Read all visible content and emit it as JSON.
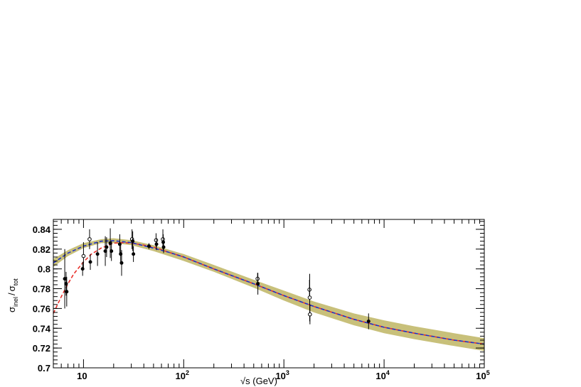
{
  "chart_data": {
    "type": "scatter",
    "title": "",
    "xlabel": "√s (GeV)",
    "ylabel": "σ_inel / σ_tot",
    "xlabel_parts": {
      "radicand": "s",
      "unit": " (GeV)"
    },
    "ylabel_parts": {
      "sigma": "σ",
      "sub1": "inel",
      "slash": "/",
      "sub2": "tot"
    },
    "x_scale": "log",
    "xlim": [
      5,
      100000
    ],
    "ylim": [
      0.7,
      0.85
    ],
    "grid": false,
    "legend": "none",
    "x_ticks": [
      {
        "value": 10,
        "label": "10",
        "exp": ""
      },
      {
        "value": 100,
        "label": "10",
        "exp": "2"
      },
      {
        "value": 1000,
        "label": "10",
        "exp": "3"
      },
      {
        "value": 10000,
        "label": "10",
        "exp": "4"
      },
      {
        "value": 100000,
        "label": "10",
        "exp": "5"
      }
    ],
    "y_ticks": [
      {
        "value": 0.7,
        "label": "0.7"
      },
      {
        "value": 0.72,
        "label": "0.72"
      },
      {
        "value": 0.74,
        "label": "0.74"
      },
      {
        "value": 0.76,
        "label": "0.76"
      },
      {
        "value": 0.78,
        "label": "0.78"
      },
      {
        "value": 0.8,
        "label": "0.8"
      },
      {
        "value": 0.82,
        "label": "0.82"
      },
      {
        "value": 0.84,
        "label": "0.84"
      }
    ],
    "band": {
      "color": "#c8c07a",
      "x": [
        5,
        7,
        10,
        15,
        20,
        30,
        50,
        100,
        200,
        500,
        1000,
        2000,
        5000,
        10000,
        20000,
        50000,
        100000
      ],
      "y_low": [
        0.802,
        0.813,
        0.821,
        0.826,
        0.826,
        0.824,
        0.818,
        0.808,
        0.797,
        0.781,
        0.768,
        0.756,
        0.743,
        0.735,
        0.729,
        0.722,
        0.717
      ],
      "y_high": [
        0.81,
        0.819,
        0.826,
        0.83,
        0.831,
        0.829,
        0.824,
        0.815,
        0.804,
        0.789,
        0.778,
        0.767,
        0.755,
        0.748,
        0.742,
        0.735,
        0.73
      ]
    },
    "series": [
      {
        "style": "dashed",
        "color": "#e8302a",
        "x": [
          5,
          6,
          7,
          8,
          10,
          12,
          15,
          20,
          25,
          30,
          40,
          50,
          70,
          100,
          200,
          500,
          1000,
          2000,
          5000,
          10000,
          20000,
          50000,
          100000
        ],
        "y": [
          0.755,
          0.772,
          0.785,
          0.795,
          0.807,
          0.815,
          0.821,
          0.826,
          0.8265,
          0.826,
          0.824,
          0.822,
          0.817,
          0.812,
          0.8,
          0.785,
          0.773,
          0.762,
          0.749,
          0.741,
          0.735,
          0.728,
          0.724
        ]
      },
      {
        "style": "dashed",
        "color": "#2030c8",
        "x": [
          5,
          7,
          10,
          15,
          20,
          30,
          50,
          70,
          100,
          200,
          500,
          1000,
          2000,
          5000,
          10000,
          20000,
          50000,
          100000
        ],
        "y": [
          0.806,
          0.816,
          0.823,
          0.828,
          0.8285,
          0.8265,
          0.821,
          0.817,
          0.812,
          0.8,
          0.785,
          0.773,
          0.762,
          0.749,
          0.741,
          0.735,
          0.728,
          0.724
        ]
      }
    ],
    "points": [
      {
        "x": 6.5,
        "y": 0.79,
        "err": 0.03,
        "marker": "filled"
      },
      {
        "x": 6.7,
        "y": 0.785,
        "err": 0.012,
        "marker": "filled"
      },
      {
        "x": 6.8,
        "y": 0.777,
        "err": 0.015,
        "marker": "filled"
      },
      {
        "x": 9.8,
        "y": 0.8,
        "err": 0.007,
        "marker": "filled"
      },
      {
        "x": 10.0,
        "y": 0.813,
        "err": 0.014,
        "marker": "open"
      },
      {
        "x": 11.5,
        "y": 0.83,
        "err": 0.01,
        "marker": "open"
      },
      {
        "x": 11.7,
        "y": 0.807,
        "err": 0.008,
        "marker": "filled"
      },
      {
        "x": 13.8,
        "y": 0.815,
        "err": 0.012,
        "marker": "filled"
      },
      {
        "x": 16.5,
        "y": 0.818,
        "err": 0.015,
        "marker": "filled"
      },
      {
        "x": 17.0,
        "y": 0.822,
        "err": 0.01,
        "marker": "filled"
      },
      {
        "x": 18.5,
        "y": 0.826,
        "err": 0.015,
        "marker": "filled"
      },
      {
        "x": 19.0,
        "y": 0.818,
        "err": 0.01,
        "marker": "filled"
      },
      {
        "x": 23.0,
        "y": 0.825,
        "err": 0.01,
        "marker": "filled"
      },
      {
        "x": 23.5,
        "y": 0.815,
        "err": 0.01,
        "marker": "filled"
      },
      {
        "x": 24.0,
        "y": 0.806,
        "err": 0.013,
        "marker": "filled"
      },
      {
        "x": 30.5,
        "y": 0.83,
        "err": 0.01,
        "marker": "open"
      },
      {
        "x": 31.0,
        "y": 0.828,
        "err": 0.01,
        "marker": "filled"
      },
      {
        "x": 31.5,
        "y": 0.815,
        "err": 0.008,
        "marker": "filled"
      },
      {
        "x": 45.0,
        "y": 0.823,
        "err": 0.003,
        "marker": "filled"
      },
      {
        "x": 53.0,
        "y": 0.829,
        "err": 0.007,
        "marker": "open"
      },
      {
        "x": 53.5,
        "y": 0.825,
        "err": 0.006,
        "marker": "filled"
      },
      {
        "x": 62.0,
        "y": 0.83,
        "err": 0.01,
        "marker": "open"
      },
      {
        "x": 62.5,
        "y": 0.827,
        "err": 0.008,
        "marker": "filled"
      },
      {
        "x": 63.0,
        "y": 0.822,
        "err": 0.006,
        "marker": "filled"
      },
      {
        "x": 546,
        "y": 0.79,
        "err": 0.006,
        "marker": "open"
      },
      {
        "x": 550,
        "y": 0.785,
        "err": 0.011,
        "marker": "filled"
      },
      {
        "x": 1800,
        "y": 0.779,
        "err": 0.01,
        "marker": "open"
      },
      {
        "x": 1810,
        "y": 0.771,
        "err": 0.024,
        "marker": "open"
      },
      {
        "x": 1820,
        "y": 0.754,
        "err": 0.01,
        "marker": "open"
      },
      {
        "x": 7000,
        "y": 0.747,
        "err": 0.008,
        "marker": "filled"
      }
    ]
  }
}
